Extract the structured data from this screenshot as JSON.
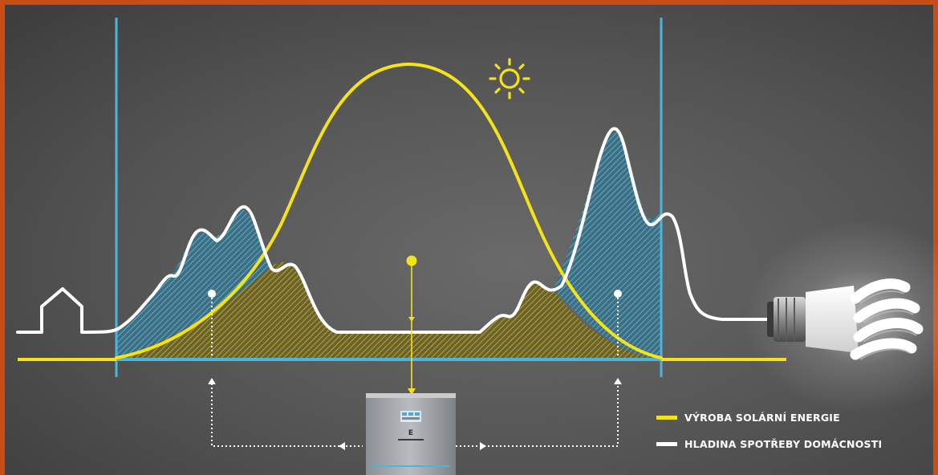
{
  "diagram": {
    "legend": [
      {
        "label": "VÝROBA SOLÁRNÍ ENERGIE",
        "color": "#f5e31a"
      },
      {
        "label": "HLADINA SPOTŘEBY DOMÁCNOSTI",
        "color": "#ffffff"
      }
    ],
    "colors": {
      "solar_production": "#f5e31a",
      "household_consumption": "#ffffff",
      "time_window_lines": "#4fb4dc",
      "battery_storage_hatch": "#4fb4dc",
      "direct_use_hatch": "#e8d21c",
      "frame_border": "#c84c14",
      "background": "#555555"
    },
    "icons": [
      "house-icon",
      "sun-icon",
      "light-bulb-icon",
      "battery-unit-icon"
    ]
  }
}
